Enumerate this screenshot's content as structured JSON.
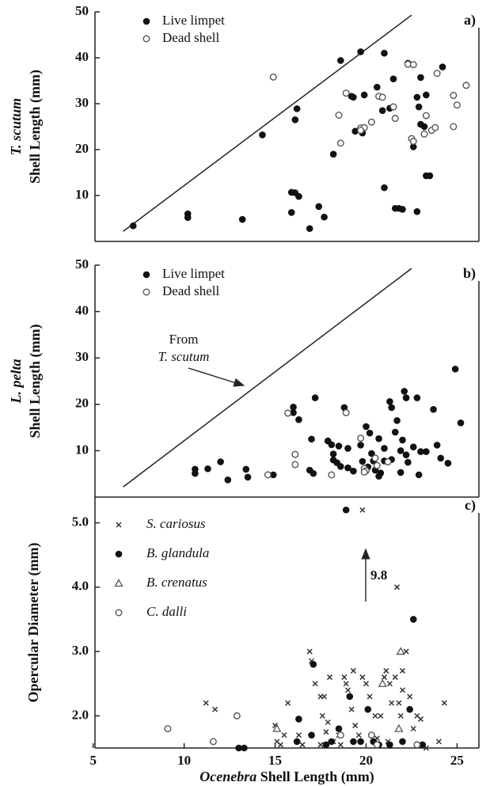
{
  "chart_data": [
    {
      "type": "scatter",
      "panel_label": "a)",
      "ylabel_italic": "T. scutum",
      "ylabel": "Shell Length (mm)",
      "xlim": [
        5.1,
        26.2
      ],
      "ylim": [
        0,
        50
      ],
      "yticks": [
        10,
        20,
        30,
        40,
        50
      ],
      "line": {
        "x": [
          6.65,
          22.5
        ],
        "y": [
          2.2,
          49.3
        ]
      },
      "series": [
        {
          "name": "Live limpet",
          "marker": "filled-circle",
          "color": "#111111",
          "x": [
            7.2,
            10.2,
            10.2,
            13.2,
            14.3,
            16.2,
            16.1,
            15.9,
            16.1,
            16.3,
            15.9,
            16.9,
            17.4,
            17.7,
            18.2,
            18.6,
            19.2,
            19.3,
            19.4,
            19.7,
            19.8,
            19.9,
            20.6,
            20.9,
            21.0,
            21.0,
            21.3,
            21.5,
            21.6,
            21.8,
            22.0,
            22.3,
            22.6,
            22.8,
            22.8,
            22.9,
            23.0,
            23.0,
            23.2,
            23.3,
            23.5,
            23.3,
            24.2
          ],
          "values": [
            3.4,
            6,
            5.2,
            4.8,
            23.2,
            28.9,
            26.5,
            10.7,
            10.6,
            9.8,
            6.3,
            2.8,
            7.6,
            5.3,
            19,
            39.4,
            31.6,
            31.4,
            24,
            41.3,
            23.6,
            31.9,
            33.6,
            28.5,
            41,
            11.7,
            29,
            35.4,
            7.2,
            7.2,
            7,
            38.8,
            20.6,
            6.5,
            31.4,
            29.3,
            25.5,
            35.7,
            25,
            14.3,
            14.3,
            31.9,
            38
          ]
        },
        {
          "name": "Dead shell",
          "marker": "open-circle",
          "color": "#555555",
          "x": [
            14.9,
            18.6,
            18.5,
            18.9,
            19.7,
            19.9,
            19.7,
            20.3,
            20.7,
            20.9,
            21.5,
            21.6,
            22.3,
            22.6,
            22.5,
            22.6,
            23.2,
            23.3,
            23.6,
            23.8,
            23.9,
            24.8,
            25.0,
            24.8,
            25.5
          ],
          "values": [
            35.8,
            21.4,
            27.5,
            32.3,
            24.7,
            24.8,
            24.2,
            26,
            31.6,
            31.4,
            29.3,
            26.8,
            38.6,
            38.5,
            22.4,
            21.8,
            23.4,
            27.4,
            24.2,
            24.8,
            36.6,
            31.8,
            29.7,
            25,
            34
          ]
        }
      ]
    },
    {
      "type": "scatter",
      "panel_label": "b)",
      "ylabel_italic": "L. pelta",
      "ylabel": "Shell Length (mm)",
      "xlim": [
        5.1,
        26.2
      ],
      "ylim": [
        0,
        50
      ],
      "yticks": [
        10,
        20,
        30,
        40,
        50
      ],
      "line": {
        "x": [
          6.65,
          22.5
        ],
        "y": [
          2.2,
          49.3
        ]
      },
      "annotation": {
        "lines": [
          "From",
          "T. scutum"
        ]
      },
      "series": [
        {
          "name": "Live limpet",
          "marker": "filled-circle",
          "color": "#111111",
          "x": [
            10.6,
            10.6,
            11.3,
            12.0,
            12.4,
            13.4,
            13.5,
            14.9,
            16.0,
            16.0,
            16.3,
            17.0,
            16.9,
            17.1,
            17.2,
            17.9,
            18.1,
            18.2,
            18.2,
            18.4,
            18.6,
            18.5,
            18.8,
            19.0,
            19.0,
            19.3,
            19.7,
            19.8,
            20.0,
            20.2,
            20.3,
            20.4,
            20.5,
            20.7,
            20.7,
            20.8,
            21.0,
            21.0,
            21.3,
            21.4,
            21.4,
            21.6,
            21.7,
            21.9,
            22.0,
            22.1,
            22.2,
            22.2,
            22.3,
            22.6,
            22.8,
            22.9,
            23.0,
            23.3,
            23.7,
            23.9,
            24.1,
            24.5,
            24.9,
            25.2,
            21.9,
            20.1
          ],
          "values": [
            6,
            5.1,
            6.1,
            7.6,
            3.7,
            6,
            4.3,
            4.8,
            19.4,
            18.2,
            16.7,
            12.5,
            5.8,
            5.1,
            21.4,
            12.1,
            11.3,
            9.3,
            8,
            7.4,
            6.6,
            11,
            19.3,
            10.5,
            6.3,
            5.6,
            11.2,
            7.7,
            15.2,
            13.8,
            9.4,
            7.8,
            5.8,
            4.5,
            12.6,
            5.2,
            7.8,
            10.5,
            20.6,
            19.3,
            8.1,
            14,
            16.5,
            10,
            12.3,
            22.8,
            21.4,
            9.1,
            7.5,
            10.8,
            21.4,
            4.8,
            9.8,
            9.8,
            18.9,
            11.2,
            8.4,
            7.3,
            27.6,
            16,
            5.3,
            6.5
          ]
        },
        {
          "name": "Dead shell",
          "marker": "open-circle",
          "color": "#555555",
          "x": [
            15.7,
            16.1,
            16.1,
            14.6,
            18.1,
            18.9,
            19.7,
            19.9,
            20.0,
            20.5,
            20.6,
            21.2,
            19.9
          ],
          "values": [
            18.1,
            9.2,
            7,
            4.8,
            4.8,
            18.2,
            12.7,
            6.2,
            5.7,
            8.4,
            6.8,
            7.6,
            5.4
          ]
        }
      ]
    },
    {
      "type": "scatter",
      "panel_label": "c)",
      "ylabel": "Opercular Diameter (mm)",
      "xlabel_italic": "Ocenebra",
      "xlabel": "Shell Length (mm)",
      "xlim": [
        5.1,
        26.2
      ],
      "xticks": [
        5,
        10,
        15,
        20,
        25
      ],
      "ylim": [
        1.5,
        5.4
      ],
      "yticks": [
        {
          "value": 2,
          "label": "2.0"
        },
        {
          "value": 3,
          "label": "3.0"
        },
        {
          "value": 4,
          "label": "4.0"
        },
        {
          "value": 5,
          "label": "5.0"
        }
      ],
      "annotation": {
        "lines": [
          "9.8"
        ]
      },
      "series": [
        {
          "name": "S. cariosus",
          "marker": "x",
          "color": "#333333",
          "x": [
            11.2,
            11.7,
            15.1,
            15.3,
            15.0,
            15.7,
            15.5,
            16.3,
            16.5,
            16.9,
            17.0,
            17.2,
            17.5,
            17.7,
            17.6,
            17.8,
            17.9,
            18.0,
            18.2,
            18.5,
            18.8,
            18.9,
            19.0,
            19.2,
            19.3,
            19.4,
            19.6,
            19.8,
            19.8,
            20.0,
            20.2,
            20.5,
            20.6,
            20.8,
            21.0,
            21.1,
            21.3,
            21.4,
            21.6,
            21.7,
            21.8,
            21.9,
            22.0,
            22.2,
            22.4,
            22.6,
            22.8,
            23.0,
            23.3,
            24.0,
            24.3,
            17.5,
            18.6,
            21.2,
            22.0
          ],
          "values": [
            2.2,
            2.1,
            1.6,
            1.55,
            1.85,
            2.2,
            1.7,
            1.7,
            1.55,
            3.0,
            2.85,
            2.5,
            2.3,
            2.3,
            2.0,
            1.75,
            1.9,
            2.6,
            1.6,
            1.7,
            2.6,
            2.5,
            2.4,
            2.1,
            2.7,
            1.85,
            1.7,
            2.6,
            5.2,
            2.5,
            2.3,
            2.0,
            1.65,
            2.0,
            2.6,
            2.7,
            2.5,
            2.2,
            2.6,
            4.0,
            2.2,
            2.0,
            2.7,
            3.0,
            2.3,
            1.8,
            2.0,
            1.95,
            1.5,
            1.6,
            2.2,
            1.55,
            1.55,
            1.6,
            2.4
          ]
        },
        {
          "name": "B. glandula",
          "marker": "filled-circle",
          "color": "#111111",
          "x": [
            13.0,
            13.3,
            16.3,
            16.2,
            17.0,
            17.1,
            17.8,
            18.1,
            18.5,
            18.9,
            19.1,
            19.3,
            19.7,
            20.1,
            20.3,
            20.4,
            20.7,
            21.3,
            22.0,
            22.6,
            22.4,
            23.1
          ],
          "values": [
            1.5,
            1.5,
            1.95,
            1.6,
            1.7,
            2.8,
            1.55,
            1.6,
            1.8,
            5.2,
            2.3,
            1.6,
            1.6,
            2.1,
            1.7,
            1.6,
            1.55,
            1.55,
            1.6,
            3.5,
            2.1,
            1.55
          ]
        },
        {
          "name": "B. crenatus",
          "marker": "triangle",
          "color": "#555555",
          "x": [
            15.1,
            21.9,
            21.8,
            20.9
          ],
          "values": [
            1.8,
            3.0,
            1.8,
            2.5
          ]
        },
        {
          "name": "C. dalli",
          "marker": "open-circle",
          "color": "#555555",
          "x": [
            9.1,
            11.6,
            12.9,
            18.6,
            20.3,
            20.6,
            22.8
          ],
          "values": [
            1.8,
            1.6,
            2.0,
            1.7,
            1.7,
            1.55,
            1.55
          ]
        }
      ]
    }
  ]
}
